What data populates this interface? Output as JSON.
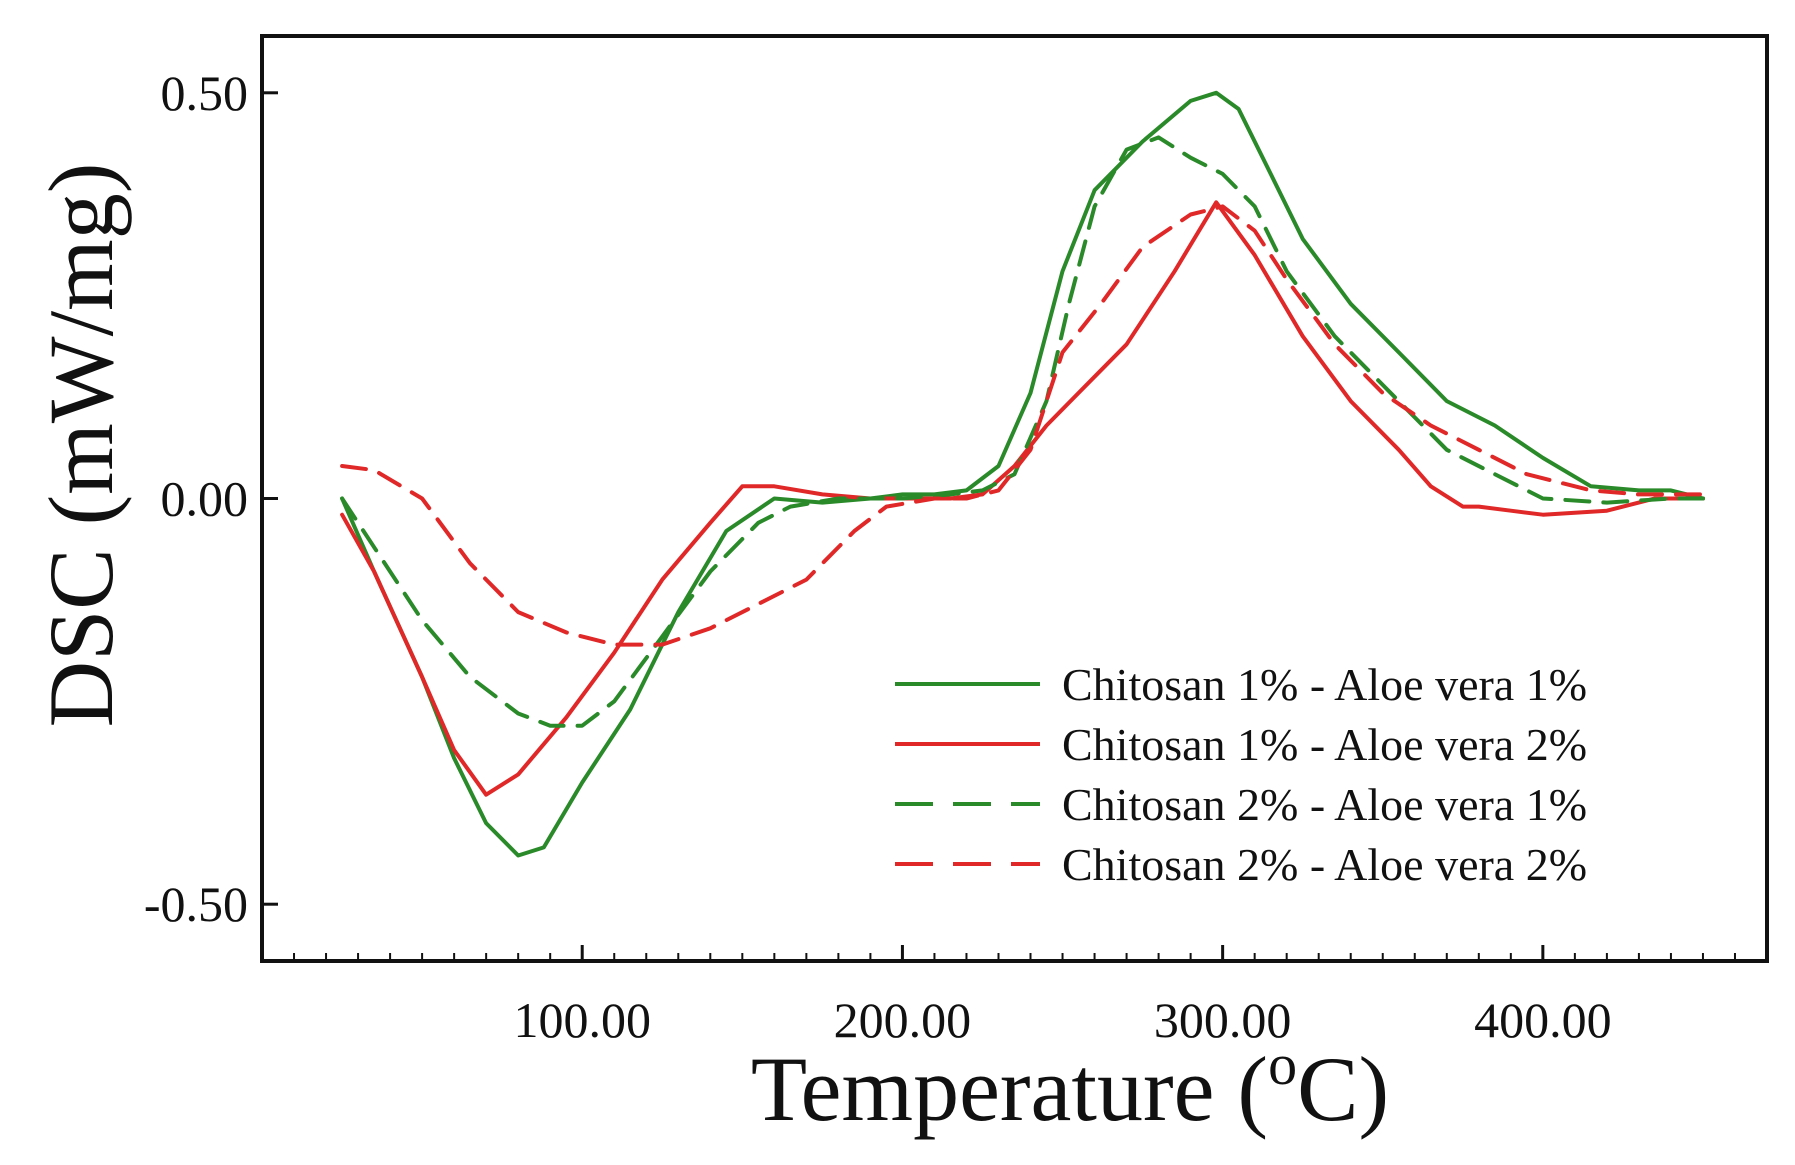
{
  "chart_data": {
    "type": "line",
    "title": "",
    "xlabel": "Temperature",
    "xlabel_sup": "o",
    "xlabel_unit": "C",
    "ylabel": "DSC (mW/mg)",
    "xlim": [
      0,
      470
    ],
    "ylim": [
      -0.57,
      0.57
    ],
    "xticks": [
      100,
      200,
      300,
      400
    ],
    "xtick_labels": [
      "100.00",
      "200.00",
      "300.00",
      "400.00"
    ],
    "yticks": [
      0.5,
      0.0,
      -0.5
    ],
    "ytick_labels": [
      "0.50",
      "0.00",
      "-0.50"
    ],
    "grid": false,
    "legend_position": "bottom-right",
    "series": [
      {
        "name": "Chitosan 1% - Aloe vera 1%",
        "color": "#2a8a2a",
        "dash": "solid",
        "points": [
          [
            25,
            0.0
          ],
          [
            35,
            -0.09
          ],
          [
            50,
            -0.22
          ],
          [
            60,
            -0.32
          ],
          [
            70,
            -0.4
          ],
          [
            80,
            -0.44
          ],
          [
            88,
            -0.43
          ],
          [
            100,
            -0.35
          ],
          [
            115,
            -0.26
          ],
          [
            130,
            -0.14
          ],
          [
            145,
            -0.04
          ],
          [
            160,
            0.0
          ],
          [
            175,
            -0.005
          ],
          [
            190,
            0.0
          ],
          [
            200,
            0.005
          ],
          [
            210,
            0.005
          ],
          [
            220,
            0.01
          ],
          [
            230,
            0.04
          ],
          [
            240,
            0.13
          ],
          [
            250,
            0.28
          ],
          [
            260,
            0.38
          ],
          [
            275,
            0.44
          ],
          [
            290,
            0.49
          ],
          [
            298,
            0.5
          ],
          [
            305,
            0.48
          ],
          [
            315,
            0.4
          ],
          [
            325,
            0.32
          ],
          [
            340,
            0.24
          ],
          [
            355,
            0.18
          ],
          [
            370,
            0.12
          ],
          [
            385,
            0.09
          ],
          [
            400,
            0.05
          ],
          [
            415,
            0.015
          ],
          [
            430,
            0.01
          ],
          [
            440,
            0.01
          ],
          [
            450,
            0.0
          ]
        ]
      },
      {
        "name": "Chitosan 1% - Aloe vera 2%",
        "color": "#e02828",
        "dash": "solid",
        "points": [
          [
            25,
            -0.02
          ],
          [
            35,
            -0.09
          ],
          [
            50,
            -0.22
          ],
          [
            60,
            -0.31
          ],
          [
            70,
            -0.365
          ],
          [
            80,
            -0.34
          ],
          [
            95,
            -0.27
          ],
          [
            110,
            -0.19
          ],
          [
            125,
            -0.1
          ],
          [
            140,
            -0.03
          ],
          [
            150,
            0.015
          ],
          [
            160,
            0.015
          ],
          [
            175,
            0.005
          ],
          [
            190,
            0.0
          ],
          [
            200,
            0.0
          ],
          [
            215,
            0.0
          ],
          [
            225,
            0.005
          ],
          [
            235,
            0.04
          ],
          [
            245,
            0.09
          ],
          [
            255,
            0.13
          ],
          [
            270,
            0.19
          ],
          [
            285,
            0.28
          ],
          [
            298,
            0.365
          ],
          [
            310,
            0.3
          ],
          [
            325,
            0.2
          ],
          [
            340,
            0.12
          ],
          [
            355,
            0.06
          ],
          [
            365,
            0.015
          ],
          [
            375,
            -0.01
          ],
          [
            380,
            -0.01
          ],
          [
            390,
            -0.015
          ],
          [
            400,
            -0.02
          ],
          [
            420,
            -0.015
          ],
          [
            435,
            0.0
          ],
          [
            450,
            0.0
          ]
        ]
      },
      {
        "name": "Chitosan 2% - Aloe vera 1%",
        "color": "#2a8a2a",
        "dash": "dashed",
        "points": [
          [
            25,
            0.0
          ],
          [
            35,
            -0.06
          ],
          [
            50,
            -0.15
          ],
          [
            65,
            -0.22
          ],
          [
            80,
            -0.265
          ],
          [
            90,
            -0.28
          ],
          [
            100,
            -0.28
          ],
          [
            110,
            -0.25
          ],
          [
            125,
            -0.17
          ],
          [
            140,
            -0.09
          ],
          [
            155,
            -0.03
          ],
          [
            165,
            -0.01
          ],
          [
            180,
            0.0
          ],
          [
            200,
            0.0
          ],
          [
            215,
            0.005
          ],
          [
            225,
            0.01
          ],
          [
            235,
            0.03
          ],
          [
            245,
            0.12
          ],
          [
            252,
            0.24
          ],
          [
            260,
            0.36
          ],
          [
            270,
            0.43
          ],
          [
            280,
            0.445
          ],
          [
            290,
            0.42
          ],
          [
            300,
            0.4
          ],
          [
            310,
            0.36
          ],
          [
            320,
            0.28
          ],
          [
            335,
            0.2
          ],
          [
            350,
            0.14
          ],
          [
            370,
            0.06
          ],
          [
            385,
            0.03
          ],
          [
            400,
            0.0
          ],
          [
            420,
            -0.005
          ],
          [
            440,
            0.0
          ],
          [
            450,
            0.0
          ]
        ]
      },
      {
        "name": "Chitosan 2% - Aloe vera 2%",
        "color": "#e02828",
        "dash": "dashed",
        "points": [
          [
            25,
            0.04
          ],
          [
            35,
            0.035
          ],
          [
            50,
            0.0
          ],
          [
            65,
            -0.08
          ],
          [
            80,
            -0.14
          ],
          [
            95,
            -0.165
          ],
          [
            110,
            -0.18
          ],
          [
            125,
            -0.18
          ],
          [
            140,
            -0.16
          ],
          [
            155,
            -0.13
          ],
          [
            170,
            -0.1
          ],
          [
            185,
            -0.04
          ],
          [
            195,
            -0.01
          ],
          [
            210,
            0.0
          ],
          [
            220,
            0.0
          ],
          [
            230,
            0.01
          ],
          [
            240,
            0.06
          ],
          [
            250,
            0.18
          ],
          [
            262,
            0.24
          ],
          [
            275,
            0.31
          ],
          [
            290,
            0.35
          ],
          [
            300,
            0.36
          ],
          [
            310,
            0.33
          ],
          [
            320,
            0.27
          ],
          [
            335,
            0.19
          ],
          [
            350,
            0.13
          ],
          [
            365,
            0.09
          ],
          [
            380,
            0.06
          ],
          [
            395,
            0.03
          ],
          [
            415,
            0.01
          ],
          [
            430,
            0.005
          ],
          [
            450,
            0.005
          ]
        ]
      }
    ]
  }
}
